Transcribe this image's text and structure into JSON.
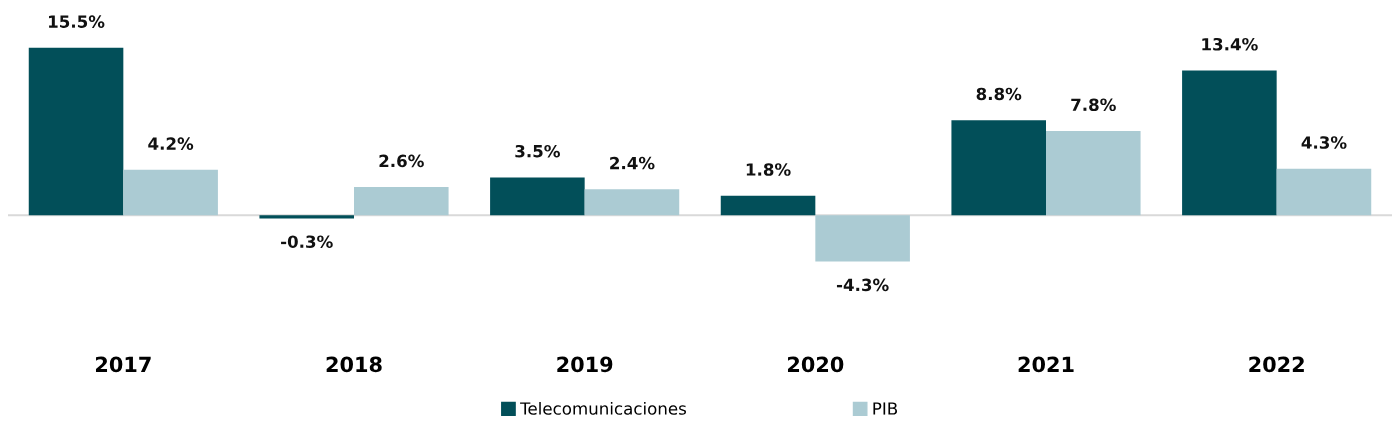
{
  "chart_data": {
    "type": "bar",
    "categories": [
      "2017",
      "2018",
      "2019",
      "2020",
      "2021",
      "2022"
    ],
    "series": [
      {
        "name": "Telecomunicaciones",
        "color": "#024f59",
        "values": [
          15.5,
          -0.3,
          3.5,
          1.8,
          8.8,
          13.4
        ],
        "value_labels": [
          "15.5%",
          "-0.3%",
          "3.5%",
          "1.8%",
          "8.8%",
          "13.4%"
        ]
      },
      {
        "name": "PIB",
        "color": "#abcbd3",
        "values": [
          4.2,
          2.6,
          2.4,
          -4.3,
          7.8,
          4.3
        ],
        "value_labels": [
          "4.2%",
          "2.6%",
          "2.4%",
          "-4.3%",
          "7.8%",
          "4.3%"
        ]
      }
    ],
    "legend": "bottom",
    "grid": false
  }
}
